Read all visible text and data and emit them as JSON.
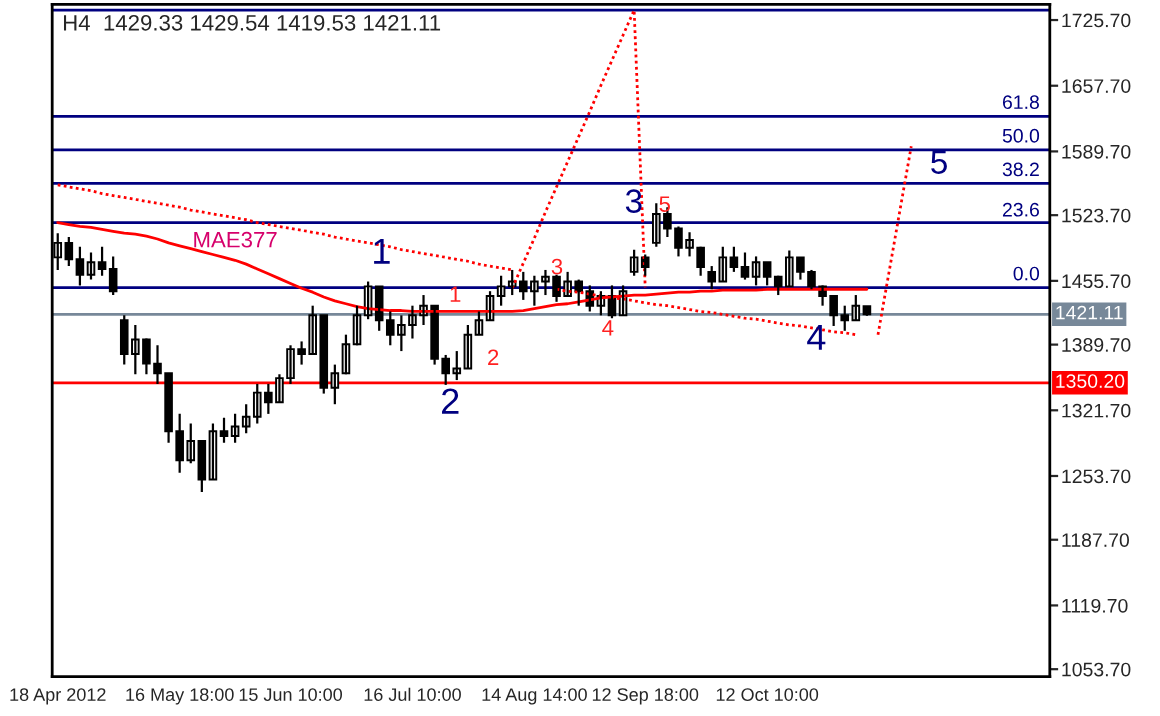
{
  "chart_data": {
    "type": "candlestick",
    "title": "H4  1429.33 1429.54 1419.53 1421.11",
    "categories": [
      "18 Apr 2012",
      null,
      null,
      null,
      null,
      null,
      null,
      null,
      null,
      null,
      null,
      "16 May 18:00",
      null,
      null,
      null,
      null,
      null,
      null,
      null,
      null,
      null,
      "15 Jun 10:00",
      null,
      null,
      null,
      null,
      null,
      null,
      null,
      null,
      null,
      null,
      "16 Jul 10:00",
      null,
      null,
      null,
      null,
      null,
      null,
      null,
      null,
      null,
      null,
      "14 Aug 14:00",
      null,
      null,
      null,
      null,
      null,
      null,
      null,
      null,
      null,
      "12 Sep 18:00",
      null,
      null,
      null,
      null,
      null,
      null,
      null,
      null,
      null,
      null,
      "12 Oct 10:00",
      null,
      null,
      null,
      null,
      null,
      null,
      null,
      null,
      null,
      null,
      null,
      null,
      null,
      null,
      null,
      null,
      null,
      null,
      null,
      null,
      null,
      null,
      null,
      null,
      null
    ],
    "ohlc": [
      [
        1480,
        1505,
        1467,
        1495
      ],
      [
        1495,
        1501,
        1471,
        1478
      ],
      [
        1478,
        1491,
        1451,
        1462
      ],
      [
        1462,
        1485,
        1457,
        1475
      ],
      [
        1475,
        1491,
        1461,
        1468
      ],
      [
        1468,
        1481,
        1441,
        1445
      ],
      [
        1415,
        1420,
        1369,
        1380
      ],
      [
        1380,
        1410,
        1359,
        1395
      ],
      [
        1395,
        1396,
        1359,
        1370
      ],
      [
        1370,
        1389,
        1349,
        1360
      ],
      [
        1360,
        1360,
        1288,
        1300
      ],
      [
        1300,
        1318,
        1257,
        1270
      ],
      [
        1270,
        1308,
        1267,
        1290
      ],
      [
        1290,
        1290,
        1237,
        1250
      ],
      [
        1250,
        1308,
        1250,
        1300
      ],
      [
        1300,
        1314,
        1288,
        1295
      ],
      [
        1295,
        1318,
        1288,
        1305
      ],
      [
        1305,
        1328,
        1298,
        1315
      ],
      [
        1315,
        1349,
        1308,
        1340
      ],
      [
        1340,
        1349,
        1318,
        1330
      ],
      [
        1330,
        1359,
        1330,
        1355
      ],
      [
        1355,
        1389,
        1349,
        1385
      ],
      [
        1385,
        1393,
        1369,
        1380
      ],
      [
        1380,
        1430,
        1380,
        1420
      ],
      [
        1420,
        1420,
        1339,
        1345
      ],
      [
        1345,
        1369,
        1328,
        1360
      ],
      [
        1360,
        1400,
        1359,
        1390
      ],
      [
        1390,
        1430,
        1389,
        1420
      ],
      [
        1420,
        1455,
        1416,
        1450
      ],
      [
        1450,
        1450,
        1404,
        1415
      ],
      [
        1415,
        1424,
        1389,
        1400
      ],
      [
        1400,
        1420,
        1383,
        1410
      ],
      [
        1410,
        1430,
        1396,
        1420
      ],
      [
        1420,
        1441,
        1410,
        1430
      ],
      [
        1430,
        1430,
        1369,
        1375
      ],
      [
        1375,
        1379,
        1348,
        1360
      ],
      [
        1360,
        1383,
        1353,
        1365
      ],
      [
        1365,
        1410,
        1365,
        1400
      ],
      [
        1400,
        1424,
        1400,
        1415
      ],
      [
        1415,
        1445,
        1415,
        1440
      ],
      [
        1440,
        1461,
        1430,
        1450
      ],
      [
        1450,
        1467,
        1441,
        1455
      ],
      [
        1455,
        1465,
        1436,
        1445
      ],
      [
        1445,
        1461,
        1430,
        1455
      ],
      [
        1455,
        1467,
        1441,
        1460
      ],
      [
        1460,
        1462,
        1434,
        1440
      ],
      [
        1440,
        1465,
        1440,
        1455
      ],
      [
        1455,
        1457,
        1430,
        1445
      ],
      [
        1445,
        1451,
        1424,
        1430
      ],
      [
        1430,
        1445,
        1420,
        1440
      ],
      [
        1440,
        1451,
        1417,
        1420
      ],
      [
        1420,
        1451,
        1420,
        1445
      ],
      [
        1465,
        1488,
        1461,
        1480
      ],
      [
        1480,
        1483,
        1461,
        1470
      ],
      [
        1495,
        1536,
        1491,
        1525
      ],
      [
        1525,
        1532,
        1501,
        1510
      ],
      [
        1510,
        1512,
        1481,
        1490
      ],
      [
        1490,
        1506,
        1481,
        1498
      ],
      [
        1490,
        1491,
        1461,
        1470
      ],
      [
        1465,
        1471,
        1447,
        1455
      ],
      [
        1455,
        1491,
        1455,
        1480
      ],
      [
        1480,
        1491,
        1465,
        1470
      ],
      [
        1470,
        1485,
        1457,
        1460
      ],
      [
        1460,
        1481,
        1451,
        1475
      ],
      [
        1475,
        1475,
        1451,
        1460
      ],
      [
        1460,
        1461,
        1441,
        1450
      ],
      [
        1450,
        1487,
        1450,
        1480
      ],
      [
        1480,
        1480,
        1457,
        1465
      ],
      [
        1465,
        1467,
        1447,
        1450
      ],
      [
        1450,
        1451,
        1430,
        1440
      ],
      [
        1440,
        1441,
        1409,
        1420
      ],
      [
        1420,
        1430,
        1404,
        1415
      ],
      [
        1415,
        1441,
        1415,
        1430
      ],
      [
        1429.33,
        1429.54,
        1419.53,
        1421.11
      ],
      null,
      null,
      null,
      null,
      null,
      null,
      null,
      null,
      null,
      null,
      null,
      null,
      null,
      null,
      null,
      null
    ],
    "color": "#000000",
    "series": [
      {
        "type": "line",
        "name": "MAE377",
        "color": "#ff0000",
        "line_style": "solid",
        "values": [
          1516,
          1514,
          1512,
          1511,
          1509,
          1507,
          1505,
          1504,
          1502,
          1499,
          1495,
          1492,
          1489,
          1486,
          1483,
          1480,
          1477,
          1473,
          1468,
          1463,
          1458,
          1453,
          1448,
          1444,
          1439,
          1435,
          1432,
          1429,
          1427,
          1426,
          1425,
          1425,
          1424,
          1424,
          1424,
          1424,
          1424,
          1424,
          1424,
          1424,
          1424,
          1424,
          1425,
          1427,
          1429,
          1431,
          1432,
          1434,
          1436,
          1438,
          1439,
          1440,
          1441,
          1441,
          1442,
          1443,
          1444,
          1444,
          1445,
          1445,
          1446,
          1446,
          1446,
          1446,
          1447,
          1447,
          1447,
          1447,
          1447,
          1447,
          1447,
          1447,
          1447,
          1447,
          null,
          null,
          null,
          null,
          null,
          null,
          null,
          null,
          null,
          null,
          null,
          null,
          null,
          null,
          null,
          null
        ]
      },
      {
        "type": "line",
        "color": "#ff0000",
        "line_style": "dotted",
        "values": [
          1555,
          1553,
          1551,
          1549,
          1546,
          1544,
          1542,
          1540,
          1538,
          1536,
          1534,
          1532,
          1529,
          1527,
          1525,
          1523,
          1521,
          1519,
          1516,
          1514,
          1512,
          1510,
          1508,
          1506,
          1504,
          1501,
          1499,
          1497,
          1495,
          1493,
          1491,
          1488,
          1486,
          1484,
          1482,
          1480,
          1478,
          1476,
          1473,
          1471,
          1469,
          1467,
          null,
          null,
          null,
          null,
          null,
          null,
          null,
          null,
          null,
          null,
          null,
          null,
          null,
          null,
          null,
          null,
          null,
          null,
          null,
          null,
          null,
          null,
          null,
          null,
          null,
          null,
          null,
          null,
          null,
          null,
          null,
          null,
          null,
          null,
          null,
          null,
          null,
          null,
          null,
          null,
          null,
          null,
          null,
          null,
          null,
          null,
          null,
          null
        ]
      },
      {
        "type": "line",
        "color": "#ff0000",
        "line_style": "dotted",
        "values": [
          null,
          null,
          null,
          null,
          null,
          null,
          null,
          null,
          null,
          null,
          null,
          null,
          null,
          null,
          null,
          null,
          null,
          null,
          null,
          null,
          null,
          null,
          null,
          null,
          null,
          null,
          null,
          null,
          null,
          null,
          null,
          null,
          null,
          null,
          null,
          null,
          null,
          null,
          null,
          null,
          null,
          1448,
          1474,
          1500,
          1527,
          1553,
          1579,
          1605,
          1631,
          1658,
          1684,
          1710,
          1736,
          1449,
          null,
          null,
          null,
          null,
          null,
          null,
          null,
          null,
          null,
          null,
          null,
          null,
          null,
          null,
          null,
          null,
          null,
          null,
          null,
          null,
          null,
          null,
          null,
          null,
          null,
          null,
          null,
          null,
          null,
          null,
          null,
          null,
          null,
          null,
          null,
          null
        ]
      },
      {
        "type": "line",
        "color": "#ff0000",
        "line_style": "dotted",
        "values": [
          null,
          null,
          null,
          null,
          null,
          null,
          null,
          null,
          null,
          null,
          null,
          null,
          null,
          null,
          null,
          null,
          null,
          null,
          null,
          null,
          null,
          null,
          null,
          null,
          null,
          null,
          null,
          null,
          null,
          null,
          null,
          null,
          null,
          null,
          null,
          null,
          null,
          null,
          null,
          null,
          null,
          null,
          null,
          null,
          null,
          1447,
          1445,
          1444,
          1442,
          1440,
          1438,
          1437,
          1435,
          1433,
          1431,
          1430,
          1428,
          1426,
          1424,
          1423,
          1421,
          1419,
          1417,
          1416,
          1414,
          1412,
          1410,
          1409,
          1407,
          1405,
          1403,
          1402,
          1400,
          null,
          null,
          null,
          null,
          null,
          null,
          null,
          null,
          null,
          null,
          null,
          null,
          null,
          null,
          null,
          null,
          null
        ]
      },
      {
        "type": "line",
        "color": "#ff0000",
        "line_style": "dotted",
        "values": [
          null,
          null,
          null,
          null,
          null,
          null,
          null,
          null,
          null,
          null,
          null,
          null,
          null,
          null,
          null,
          null,
          null,
          null,
          null,
          null,
          null,
          null,
          null,
          null,
          null,
          null,
          null,
          null,
          null,
          null,
          null,
          null,
          null,
          null,
          null,
          null,
          null,
          null,
          null,
          null,
          null,
          null,
          null,
          null,
          null,
          null,
          null,
          null,
          null,
          null,
          null,
          null,
          null,
          null,
          null,
          null,
          null,
          null,
          null,
          null,
          null,
          null,
          null,
          null,
          null,
          null,
          null,
          null,
          null,
          null,
          null,
          null,
          null,
          null,
          1400,
          1465,
          1530,
          1595,
          null,
          null,
          null,
          null,
          null,
          null,
          null,
          null,
          null,
          null,
          null,
          null
        ]
      }
    ],
    "ref_lines": [
      {
        "axis": "y",
        "value": 1735.9,
        "color": "#000080"
      },
      {
        "axis": "y",
        "value": 1625.9,
        "color": "#000080"
      },
      {
        "axis": "y",
        "value": 1591.3,
        "color": "#000080"
      },
      {
        "axis": "y",
        "value": 1556.7,
        "color": "#000080"
      },
      {
        "axis": "y",
        "value": 1516.0,
        "color": "#000080"
      },
      {
        "axis": "y",
        "value": 1448.8,
        "color": "#000080"
      },
      {
        "axis": "y",
        "value": 1421.11,
        "label": "1421.11",
        "color": "#778899"
      },
      {
        "axis": "y",
        "value": 1350.2,
        "label": "1350.20",
        "color": "#ff0000"
      }
    ],
    "annotations": [
      "1",
      "2",
      "3",
      "4",
      "5",
      "1",
      "2",
      "3",
      "4",
      "5",
      "61.8",
      "50.0",
      "38.2",
      "23.6",
      "0.0"
    ],
    "ylim": [
      1046,
      1742
    ],
    "yticks": [
      {
        "value": 1053.7,
        "label": "1053.70"
      },
      {
        "value": 1119.7,
        "label": "1119.70"
      },
      {
        "value": 1187.7,
        "label": "1187.70"
      },
      {
        "value": 1253.7,
        "label": "1253.70"
      },
      {
        "value": 1321.7,
        "label": "1321.70"
      },
      {
        "value": 1389.7,
        "label": "1389.70"
      },
      {
        "value": 1455.7,
        "label": "1455.70"
      },
      {
        "value": 1523.7,
        "label": "1523.70"
      },
      {
        "value": 1589.7,
        "label": "1589.70"
      },
      {
        "value": 1657.7,
        "label": "1657.70"
      },
      {
        "value": 1725.7,
        "label": "1725.70"
      }
    ],
    "grid": false,
    "legend": false
  }
}
